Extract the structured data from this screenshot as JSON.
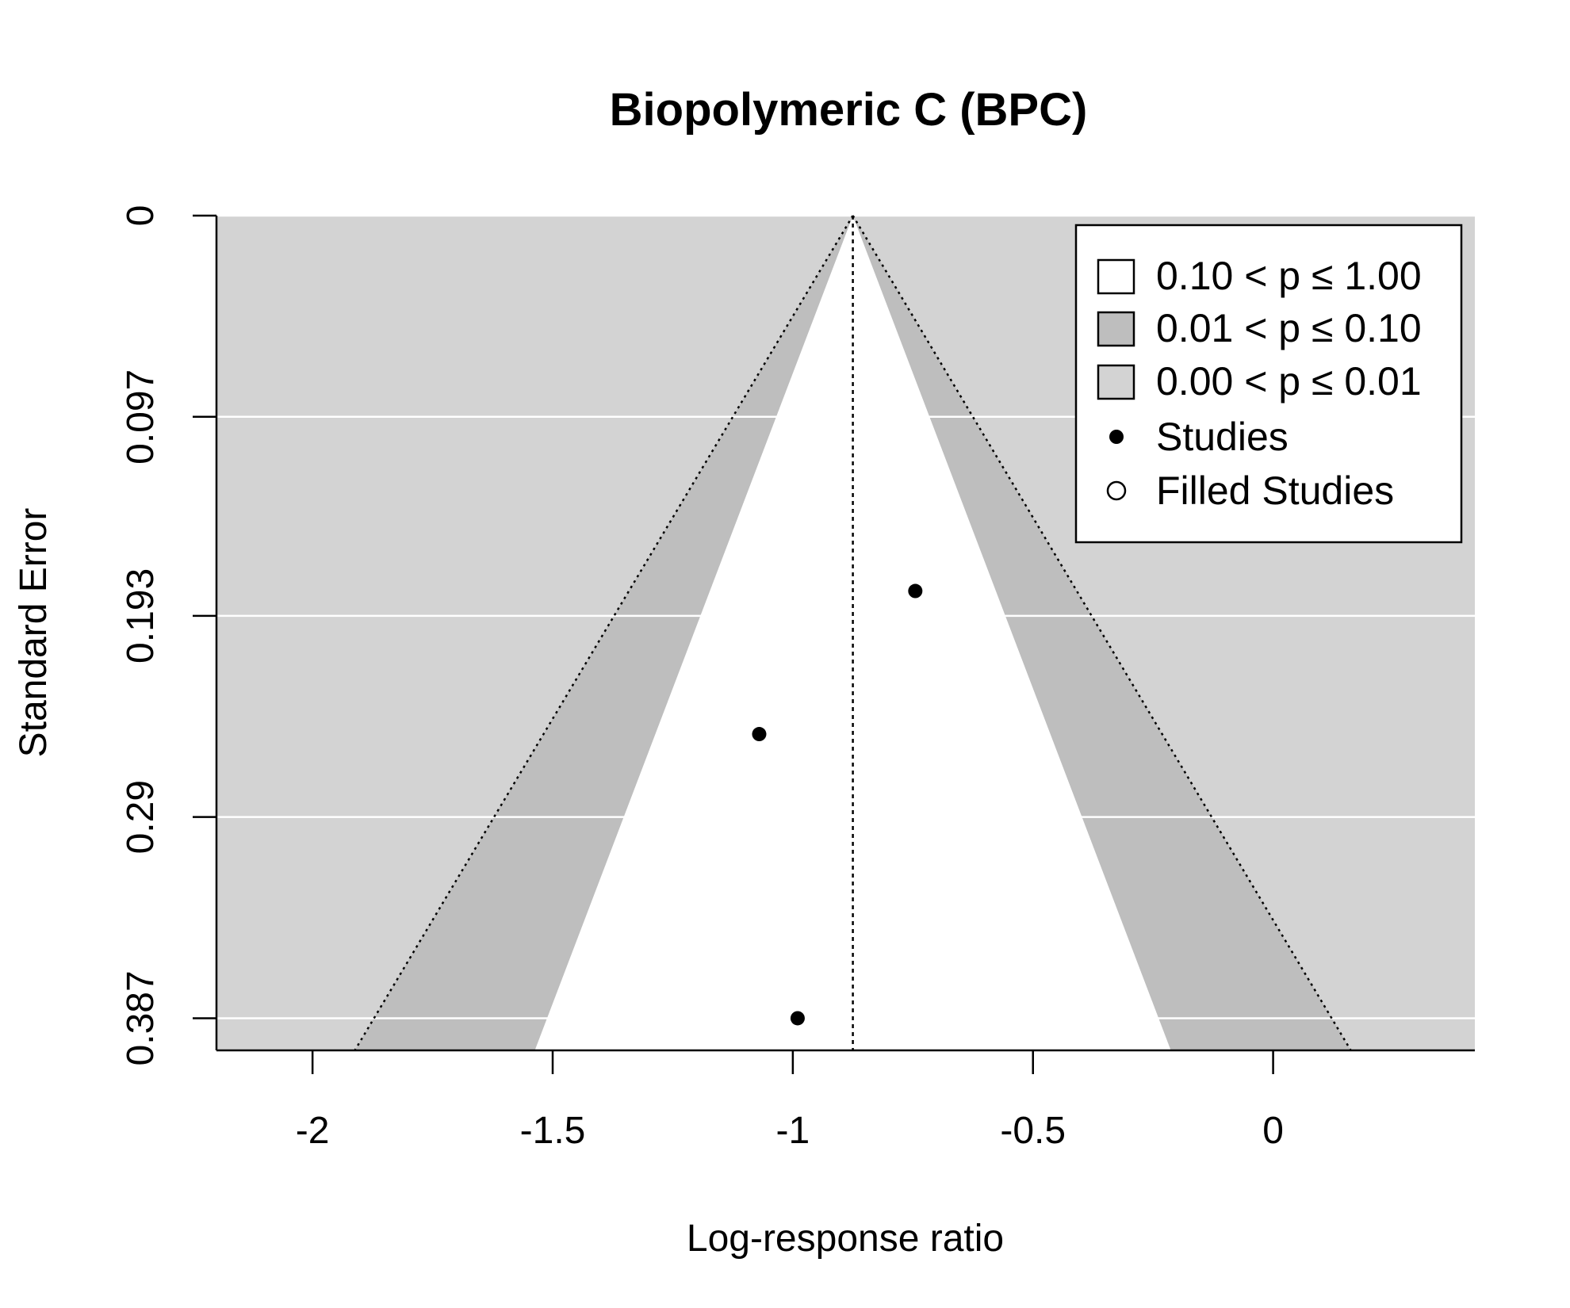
{
  "chart_data": {
    "type": "scatter",
    "subtype": "contour-enhanced funnel plot",
    "title": "Biopolymeric C (BPC)",
    "xlabel": "Log-response ratio",
    "ylabel": "Standard Error",
    "xlim": [
      -2.2,
      0.42
    ],
    "ylim": [
      0.4025,
      0
    ],
    "y_reversed": true,
    "x_ticks": [
      -2,
      -1.5,
      -1,
      -0.5,
      0
    ],
    "x_tick_labels": [
      "-2",
      "-1.5",
      "-1",
      "-0.5",
      "0"
    ],
    "y_ticks": [
      0,
      0.097,
      0.193,
      0.29,
      0.387
    ],
    "y_tick_labels": [
      "0",
      "0.097",
      "0.193",
      "0.29",
      "0.387"
    ],
    "grid": "horizontal, white, at y ticks",
    "center_estimate": -0.875,
    "contours": [
      {
        "label": "0.10 < p ≤ 1.00",
        "z": 1.645,
        "color": "#ffffff"
      },
      {
        "label": "0.01 < p ≤ 0.10",
        "z": 2.576,
        "color": "#bebebe"
      },
      {
        "label": "0.00 < p ≤ 0.01",
        "z": null,
        "color": "#d3d3d3"
      }
    ],
    "series": [
      {
        "name": "Studies",
        "marker": "filled-circle",
        "x": [
          -0.745,
          -1.07,
          -0.99
        ],
        "y": [
          0.181,
          0.25,
          0.387
        ]
      },
      {
        "name": "Filled Studies",
        "marker": "open-circle",
        "x": [],
        "y": []
      }
    ],
    "legend": {
      "position": "top-right",
      "entries": [
        "0.10 < p ≤ 1.00",
        "0.01 < p ≤ 0.10",
        "0.00 < p ≤ 0.01",
        "Studies",
        "Filled Studies"
      ]
    }
  }
}
